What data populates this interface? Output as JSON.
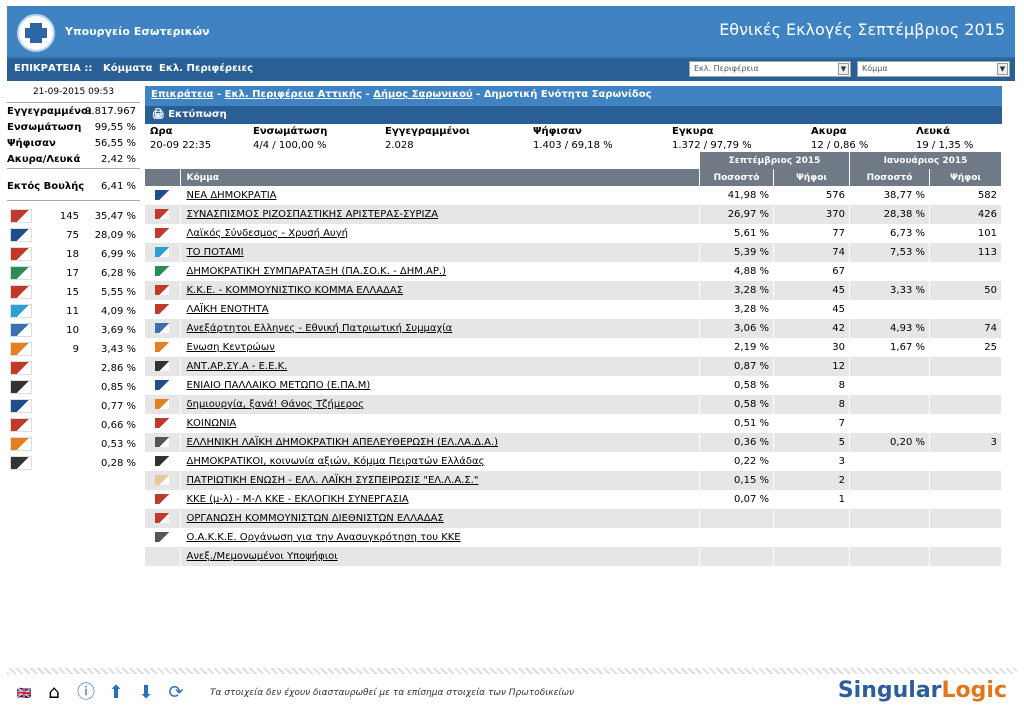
{
  "header": {
    "ministry": "Υπουργείο Εσωτερικών",
    "title": "Εθνικές Εκλογές Σεπτέμβριος 2015"
  },
  "nav": {
    "area": "ΕΠΙΚΡΑΤΕΙΑ ::",
    "parties": "Κόμματα",
    "regions": "Εκλ. Περιφέρειες",
    "region_select": "Εκλ. Περιφέρεια",
    "party_select": "Κόμμα"
  },
  "sidebar": {
    "timestamp": "21-09-2015 09:53",
    "stats": [
      {
        "label": "Εγγεγραμμένοι",
        "value": "9.817.967"
      },
      {
        "label": "Ενσωμάτωση",
        "value": "99,55 %"
      },
      {
        "label": "Ψήφισαν",
        "value": "56,55 %"
      },
      {
        "label": "Ακυρα/Λευκά",
        "value": "2,42 %"
      }
    ],
    "outside": {
      "label": "Εκτός Βουλής",
      "value": "6,41 %"
    },
    "seats": [
      {
        "seats": "145",
        "pct": "35,47 %",
        "icon": "syriza-logo",
        "color": "#c0392b"
      },
      {
        "seats": "75",
        "pct": "28,09 %",
        "icon": "nd-logo",
        "color": "#1f4e8c"
      },
      {
        "seats": "18",
        "pct": "6,99 %",
        "icon": "xa-logo",
        "color": "#c0392b"
      },
      {
        "seats": "17",
        "pct": "6,28 %",
        "icon": "pasok-logo",
        "color": "#2e8b57"
      },
      {
        "seats": "15",
        "pct": "5,55 %",
        "icon": "kke-logo",
        "color": "#c0392b"
      },
      {
        "seats": "11",
        "pct": "4,09 %",
        "icon": "potami-logo",
        "color": "#2aa0d0"
      },
      {
        "seats": "10",
        "pct": "3,69 %",
        "icon": "anel-logo",
        "color": "#3a6fb0"
      },
      {
        "seats": "9",
        "pct": "3,43 %",
        "icon": "enosi-logo",
        "color": "#e67e22"
      },
      {
        "seats": "",
        "pct": "2,86 %",
        "icon": "laiki-logo",
        "color": "#c0392b"
      },
      {
        "seats": "",
        "pct": "0,85 %",
        "icon": "antarsya-logo",
        "color": "#333333"
      },
      {
        "seats": "",
        "pct": "0,77 %",
        "icon": "epam-logo",
        "color": "#1f4e8c"
      },
      {
        "seats": "",
        "pct": "0,66 %",
        "icon": "koinonia-logo",
        "color": "#c0392b"
      },
      {
        "seats": "",
        "pct": "0,53 %",
        "icon": "dimiourgia-logo",
        "color": "#e67e22"
      },
      {
        "seats": "",
        "pct": "0,28 %",
        "icon": "aop-logo",
        "color": "#333333"
      }
    ]
  },
  "breadcrumb": {
    "state": "Επικράτεια",
    "region": "Εκλ. Περιφέρεια Αττικής",
    "municipality": "Δήμος Σαρωνικού",
    "unit": "Δημοτική Ενότητα Σαρωνίδος",
    "sep": " - "
  },
  "print": "Εκτύπωση",
  "summary": {
    "h": [
      "Ωρα",
      "Ενσωμάτωση",
      "Εγγεγραμμένοι",
      "Ψήφισαν",
      "Εγκυρα",
      "Ακυρα",
      "Λευκά"
    ],
    "v": [
      "20-09 22:35",
      "4/4 / 100,00 %",
      "2.028",
      "1.403 / 69,18 %",
      "1.372 / 97,79 %",
      "12 / 0,86 %",
      "19 / 1,35 %"
    ]
  },
  "table": {
    "sep2015": "Σεπτέμβριος 2015",
    "jan2015": "Ιανουάριος 2015",
    "party_col": "Κόμμα",
    "pct_col": "Ποσοστό",
    "votes_col": "Ψήφοι",
    "rows": [
      {
        "name": "ΝΕΑ ΔΗΜΟΚΡΑΤΙΑ",
        "pct": "41,98 %",
        "votes": "576",
        "jpct": "38,77 %",
        "jvotes": "582",
        "color": "#1f4e8c"
      },
      {
        "name": "ΣΥΝΑΣΠΙΣΜΟΣ ΡΙΖΟΣΠΑΣΤΙΚΗΣ ΑΡΙΣΤΕΡΑΣ-ΣΥΡΙΖΑ",
        "pct": "26,97 %",
        "votes": "370",
        "jpct": "28,38 %",
        "jvotes": "426",
        "color": "#c0392b"
      },
      {
        "name": "Λαϊκός Σύνδεσμος - Χρυσή Αυγή",
        "pct": "5,61 %",
        "votes": "77",
        "jpct": "6,73 %",
        "jvotes": "101",
        "color": "#c0392b"
      },
      {
        "name": "ΤΟ ΠΟΤΑΜΙ",
        "pct": "5,39 %",
        "votes": "74",
        "jpct": "7,53 %",
        "jvotes": "113",
        "color": "#2aa0d0"
      },
      {
        "name": "ΔΗΜΟΚΡΑΤΙΚΗ ΣΥΜΠΑΡΑΤΑΞΗ (ΠΑ.ΣΟ.Κ. - ΔΗΜ.ΑΡ.)",
        "pct": "4,88 %",
        "votes": "67",
        "jpct": "",
        "jvotes": "",
        "color": "#2e8b57"
      },
      {
        "name": "Κ.Κ.Ε. - ΚΟΜΜΟΥΝΙΣΤΙΚΟ ΚΟΜΜΑ ΕΛΛΑΔΑΣ",
        "pct": "3,28 %",
        "votes": "45",
        "jpct": "3,33 %",
        "jvotes": "50",
        "color": "#c0392b"
      },
      {
        "name": "ΛΑΪΚΗ ΕΝΟΤΗΤΑ",
        "pct": "3,28 %",
        "votes": "45",
        "jpct": "",
        "jvotes": "",
        "color": "#c0392b"
      },
      {
        "name": "Ανεξάρτητοι Ελληνες - Εθνική Πατριωτική Συμμαχία",
        "pct": "3,06 %",
        "votes": "42",
        "jpct": "4,93 %",
        "jvotes": "74",
        "color": "#3a6fb0"
      },
      {
        "name": "Ενωση Κεντρώων",
        "pct": "2,19 %",
        "votes": "30",
        "jpct": "1,67 %",
        "jvotes": "25",
        "color": "#e67e22"
      },
      {
        "name": "ΑΝΤ.ΑΡ.ΣΥ.Α - Ε.Ε.Κ.",
        "pct": "0,87 %",
        "votes": "12",
        "jpct": "",
        "jvotes": "",
        "color": "#333333"
      },
      {
        "name": "ΕΝΙΑΙΟ ΠΑΛΛΑΙΚΟ ΜΕΤΩΠΟ (Ε.ΠΑ.Μ)",
        "pct": "0,58 %",
        "votes": "8",
        "jpct": "",
        "jvotes": "",
        "color": "#1f4e8c"
      },
      {
        "name": "δημιουργία, ξανά! Θάνος Τζήμερος",
        "pct": "0,58 %",
        "votes": "8",
        "jpct": "",
        "jvotes": "",
        "color": "#e67e22"
      },
      {
        "name": "ΚΟΙΝΩΝΙΑ",
        "pct": "0,51 %",
        "votes": "7",
        "jpct": "",
        "jvotes": "",
        "color": "#c0392b"
      },
      {
        "name": "ΕΛΛΗΝΙΚΗ ΛΑΪΚΗ ΔΗΜΟΚΡΑΤΙΚΗ ΑΠΕΛΕΥΘΕΡΩΣΗ (ΕΛ.ΛΑ.Δ.Α.)",
        "pct": "0,36 %",
        "votes": "5",
        "jpct": "0,20 %",
        "jvotes": "3",
        "color": "#555555"
      },
      {
        "name": "ΔΗΜΟΚΡΑΤΙΚΟΙ, κοινωνία αξιών, Κόμμα Πειρατών Ελλάδας",
        "pct": "0,22 %",
        "votes": "3",
        "jpct": "",
        "jvotes": "",
        "color": "#333333"
      },
      {
        "name": "ΠΑΤΡΙΩΤΙΚΗ ΕΝΩΣΗ - ΕΛΛ. ΛΑΪΚΗ ΣΥΣΠΕΙΡΩΣΙΣ \"ΕΛ.Λ.Α.Σ.\"",
        "pct": "0,15 %",
        "votes": "2",
        "jpct": "",
        "jvotes": "",
        "color": "#e8c89a"
      },
      {
        "name": "ΚΚΕ (μ-λ) - Μ-Λ ΚΚΕ - ΕΚΛΟΓΙΚΗ ΣΥΝΕΡΓΑΣΙΑ",
        "pct": "0,07 %",
        "votes": "1",
        "jpct": "",
        "jvotes": "",
        "color": "#c0392b"
      },
      {
        "name": "ΟΡΓΑΝΩΣΗ ΚΟΜΜΟΥΝΙΣΤΩΝ ΔΙΕΘΝΙΣΤΩΝ ΕΛΛΑΔΑΣ",
        "pct": "",
        "votes": "",
        "jpct": "",
        "jvotes": "",
        "color": "#c0392b"
      },
      {
        "name": "Ο.Α.Κ.Κ.Ε. Οργάνωση για την Ανασυγκρότηση του ΚΚΕ",
        "pct": "",
        "votes": "",
        "jpct": "",
        "jvotes": "",
        "color": "#555555"
      },
      {
        "name": "Ανεξ./Μεμονωμένοι Υποψήφιοι",
        "pct": "",
        "votes": "",
        "jpct": "",
        "jvotes": "",
        "color": ""
      }
    ]
  },
  "footer": {
    "disclaimer": "Τα στοιχεία δεν έχουν διασταυρωθεί με τα επίσημα στοιχεία των Πρωτοδικείων",
    "brand_a": "Singular",
    "brand_b": "Logic"
  }
}
